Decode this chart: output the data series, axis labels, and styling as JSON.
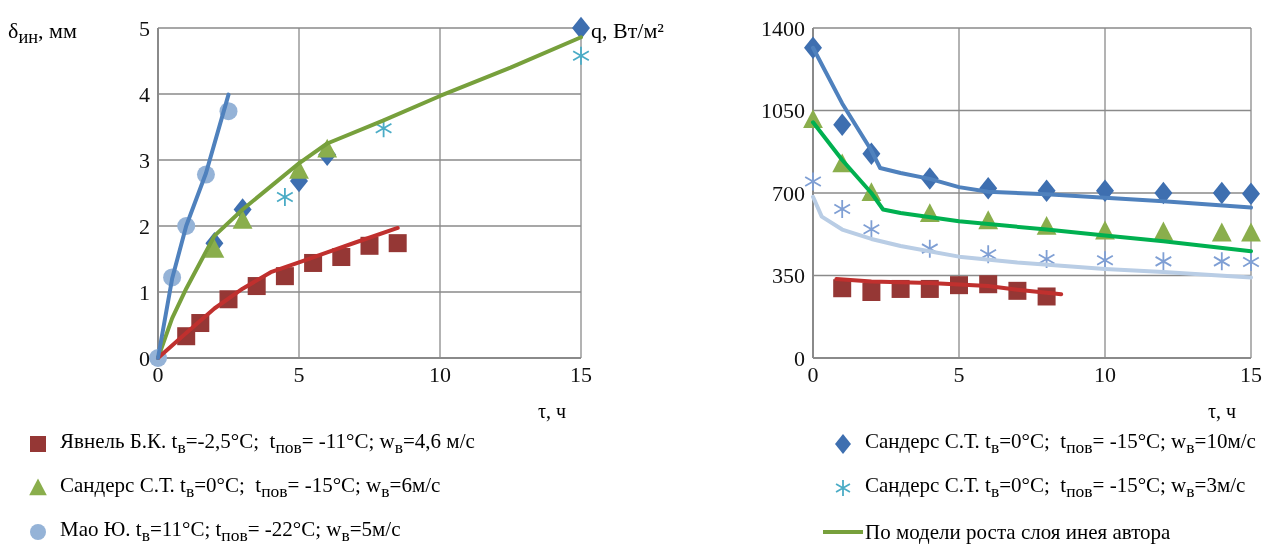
{
  "chart_data": [
    {
      "type": "scatter",
      "xlabel": "τ, ч",
      "ylabel": "δ$_{ин}$, мм",
      "xlim": [
        0,
        15
      ],
      "ylim": [
        0,
        5
      ],
      "xticks": [
        0,
        5,
        10,
        15
      ],
      "yticks": [
        0,
        1,
        2,
        3,
        4,
        5
      ],
      "grid": true,
      "legend": "bottom",
      "series": [
        {
          "name": "Явнель Б.К. t$_{в}$=-2,5°C;  t$_{пов}$= -11°C; w$_{в}$=4,6 м/с",
          "type": "scatter",
          "marker": "square",
          "color": "#953735",
          "x": [
            1,
            1.5,
            2.5,
            3.5,
            4.5,
            5.5,
            6.5,
            7.5,
            8.5
          ],
          "values": [
            0.33,
            0.53,
            0.89,
            1.09,
            1.24,
            1.44,
            1.53,
            1.7,
            1.74
          ]
        },
        {
          "name": "Сандерс С.Т. t$_{в}$=0°C;  t$_{пов}$= -15°C; w$_{в}$=10м/с",
          "type": "scatter",
          "marker": "diamond",
          "color": "#3e6fb0",
          "x": [
            2,
            3,
            5,
            6,
            15
          ],
          "values": [
            1.74,
            2.25,
            2.68,
            3.08,
            5
          ]
        },
        {
          "name": "Сандерс С.Т. t$_{в}$=0°C;  t$_{пов}$= -15°C; w$_{в}$=6м/с",
          "type": "scatter",
          "marker": "triangle",
          "color": "#8aae4c",
          "x": [
            2,
            3,
            5,
            6
          ],
          "values": [
            1.64,
            2.08,
            2.84,
            3.16
          ]
        },
        {
          "name": "Сандерс С.Т. t$_{в}$=0°C;  t$_{пов}$= -15°C; w$_{в}$=3м/с",
          "type": "scatter",
          "marker": "cross",
          "color": "#4bacc6",
          "x": [
            4.5,
            8,
            15
          ],
          "values": [
            2.44,
            3.48,
            4.58
          ]
        },
        {
          "name": "Мао Ю. t$_{в}$=11°C; t$_{пов}$= -22°C; w$_{в}$=5м/с",
          "type": "scatter",
          "marker": "circle",
          "color": "#95b3d7",
          "x": [
            0,
            0.5,
            1,
            1.7,
            2.5
          ],
          "values": [
            0,
            1.22,
            2.0,
            2.78,
            3.74
          ]
        },
        {
          "name": "По модели роста слоя инея автора",
          "type": "line",
          "color": "#77a03c",
          "x": [
            0,
            0.5,
            1,
            1.5,
            2,
            3,
            4,
            5,
            5.5,
            6,
            8,
            10,
            12.5,
            15
          ],
          "values": [
            0,
            0.6,
            1.05,
            1.45,
            1.85,
            2.25,
            2.6,
            2.95,
            3.1,
            3.25,
            3.6,
            3.97,
            4.4,
            4.86
          ]
        },
        {
          "type": "line",
          "color": "#c0302e",
          "x": [
            0,
            1,
            2,
            3,
            4,
            5,
            6,
            7,
            8.5
          ],
          "values": [
            0,
            0.38,
            0.75,
            1.05,
            1.3,
            1.45,
            1.6,
            1.75,
            1.97
          ]
        },
        {
          "type": "line",
          "color": "#4f81bd",
          "x": [
            0,
            0.5,
            1,
            1.7,
            2.5
          ],
          "values": [
            0,
            1.2,
            2.0,
            2.8,
            3.99
          ]
        }
      ]
    },
    {
      "type": "scatter",
      "xlabel": "τ, ч",
      "ylabel": "q, Вт/м²",
      "xlim": [
        0,
        15
      ],
      "ylim": [
        0,
        1400
      ],
      "xticks": [
        0,
        5,
        10,
        15
      ],
      "yticks": [
        0,
        350,
        700,
        1050,
        1400
      ],
      "grid": true,
      "series": [
        {
          "type": "line",
          "color": "#4f81bd",
          "x": [
            0,
            1,
            2,
            2.3,
            3,
            4,
            5,
            6,
            8,
            10,
            12,
            15
          ],
          "values": [
            1316,
            1080,
            880,
            806,
            785,
            760,
            725,
            705,
            695,
            680,
            665,
            638
          ]
        },
        {
          "type": "line",
          "color": "#00b050",
          "x": [
            0,
            1,
            2,
            2.4,
            3,
            5,
            8,
            10,
            12,
            15
          ],
          "values": [
            1000,
            840,
            700,
            630,
            615,
            580,
            545,
            520,
            495,
            453
          ]
        },
        {
          "type": "line",
          "color": "#b9cde5",
          "x": [
            0,
            0.3,
            1,
            2,
            3,
            5,
            7,
            10,
            12,
            15
          ],
          "values": [
            684,
            600,
            545,
            505,
            475,
            430,
            405,
            378,
            365,
            342
          ]
        },
        {
          "type": "line",
          "color": "#c0302e",
          "x": [
            0.8,
            2,
            4,
            6,
            7,
            8.5
          ],
          "values": [
            335,
            325,
            318,
            305,
            290,
            270
          ]
        },
        {
          "type": "scatter",
          "marker": "diamond",
          "color": "#3e6fb0",
          "x": [
            0,
            1,
            2,
            4,
            6,
            8,
            10,
            12,
            14,
            15
          ],
          "values": [
            1316,
            990,
            866,
            762,
            720,
            710,
            710,
            700,
            700,
            697
          ]
        },
        {
          "type": "scatter",
          "marker": "triangle",
          "color": "#8aae4c",
          "x": [
            0,
            1,
            2,
            4,
            6,
            8,
            10,
            12,
            14,
            15
          ],
          "values": [
            1010,
            822,
            700,
            611,
            581,
            557,
            537,
            533,
            529,
            529
          ]
        },
        {
          "type": "scatter",
          "marker": "cross",
          "color": "#7f9fd4",
          "x": [
            0,
            1,
            2,
            4,
            6,
            8,
            10,
            12,
            14,
            15
          ],
          "values": [
            749,
            632,
            546,
            464,
            440,
            420,
            415,
            410,
            410,
            407
          ]
        },
        {
          "type": "scatter",
          "marker": "square",
          "color": "#953735",
          "x": [
            1,
            2,
            3,
            4,
            5,
            6,
            7,
            8
          ],
          "values": [
            296,
            280,
            293,
            293,
            309,
            313,
            285,
            261
          ]
        }
      ]
    }
  ]
}
